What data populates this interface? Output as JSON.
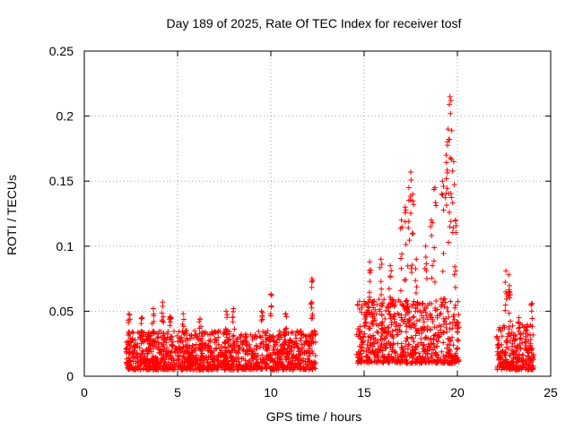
{
  "chart_data": {
    "type": "scatter",
    "title": "Day 189 of 2025, Rate Of TEC Index for receiver tosf",
    "xlabel": "GPS time / hours",
    "ylabel": "ROTI / TECUs",
    "xlim": [
      0,
      25
    ],
    "ylim": [
      0,
      0.25
    ],
    "xticks": [
      0,
      5,
      10,
      15,
      20,
      25
    ],
    "xtick_labels": [
      "0",
      "5",
      "10",
      "15",
      "20",
      "25"
    ],
    "yticks": [
      0,
      0.05,
      0.1,
      0.15,
      0.2,
      0.25
    ],
    "ytick_labels": [
      "0",
      "0.05",
      "0.1",
      "0.15",
      "0.2",
      "0.25"
    ],
    "grid": true,
    "marker": "+",
    "color": "#ff0000",
    "series": [
      {
        "name": "ROTI",
        "segments": [
          {
            "x_start": 2.2,
            "x_end": 12.4,
            "typical_min": 0.005,
            "typical_max": 0.035
          },
          {
            "x_start": 14.6,
            "x_end": 20.1,
            "typical_min": 0.01,
            "typical_max": 0.06
          },
          {
            "x_start": 22.1,
            "x_end": 24.1,
            "typical_min": 0.005,
            "typical_max": 0.04
          }
        ],
        "peaks": [
          {
            "x": 2.4,
            "y": 0.048
          },
          {
            "x": 3.1,
            "y": 0.045
          },
          {
            "x": 3.7,
            "y": 0.052
          },
          {
            "x": 4.2,
            "y": 0.057
          },
          {
            "x": 4.6,
            "y": 0.046
          },
          {
            "x": 5.3,
            "y": 0.048
          },
          {
            "x": 6.2,
            "y": 0.044
          },
          {
            "x": 7.6,
            "y": 0.05
          },
          {
            "x": 8.0,
            "y": 0.052
          },
          {
            "x": 9.5,
            "y": 0.05
          },
          {
            "x": 10.0,
            "y": 0.063
          },
          {
            "x": 10.8,
            "y": 0.048
          },
          {
            "x": 12.2,
            "y": 0.075
          },
          {
            "x": 12.2,
            "y": 0.057
          },
          {
            "x": 15.3,
            "y": 0.088
          },
          {
            "x": 15.9,
            "y": 0.09
          },
          {
            "x": 16.4,
            "y": 0.085
          },
          {
            "x": 17.0,
            "y": 0.12
          },
          {
            "x": 17.2,
            "y": 0.13
          },
          {
            "x": 17.4,
            "y": 0.145
          },
          {
            "x": 17.5,
            "y": 0.157
          },
          {
            "x": 17.6,
            "y": 0.14
          },
          {
            "x": 17.8,
            "y": 0.09
          },
          {
            "x": 18.3,
            "y": 0.1
          },
          {
            "x": 18.6,
            "y": 0.12
          },
          {
            "x": 18.8,
            "y": 0.145
          },
          {
            "x": 19.2,
            "y": 0.15
          },
          {
            "x": 19.4,
            "y": 0.17
          },
          {
            "x": 19.5,
            "y": 0.19
          },
          {
            "x": 19.6,
            "y": 0.215
          },
          {
            "x": 19.65,
            "y": 0.212
          },
          {
            "x": 19.8,
            "y": 0.165
          },
          {
            "x": 19.9,
            "y": 0.12
          },
          {
            "x": 22.6,
            "y": 0.081
          },
          {
            "x": 22.75,
            "y": 0.078
          },
          {
            "x": 22.8,
            "y": 0.065
          },
          {
            "x": 23.3,
            "y": 0.045
          },
          {
            "x": 24.0,
            "y": 0.056
          }
        ]
      }
    ]
  }
}
